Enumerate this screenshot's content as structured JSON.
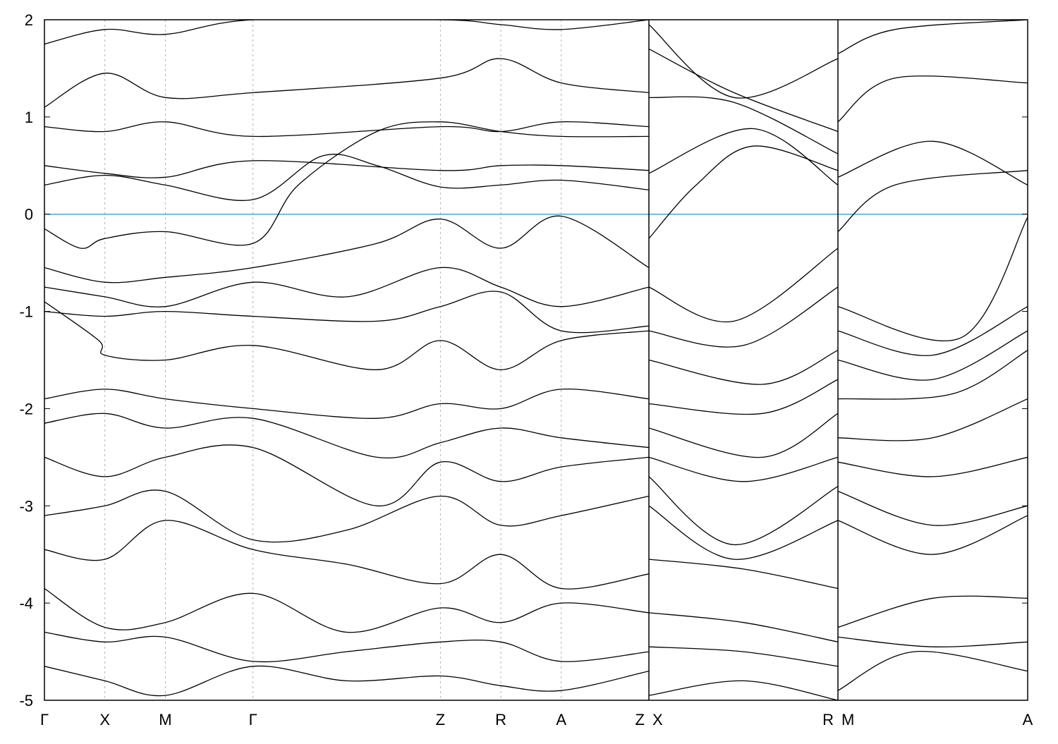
{
  "chart_data": {
    "type": "line",
    "title": "",
    "xlabel": "",
    "ylabel": "",
    "ylim": [
      -5,
      2
    ],
    "yticks": [
      -5,
      -4,
      -3,
      -2,
      -1,
      0,
      1,
      2
    ],
    "fermi_level": 0,
    "fermi_color": "#4aa8c8",
    "line_color": "#000000",
    "grid": "dashed vertical lines at high-symmetry points",
    "panels": [
      {
        "name": "Γ-X-M-Γ-Z-R-A-Z",
        "xlim": [
          0,
          10
        ],
        "kpoints": [
          {
            "label": "Γ",
            "x": 0
          },
          {
            "label": "X",
            "x": 1
          },
          {
            "label": "M",
            "x": 2
          },
          {
            "label": "Γ",
            "x": 3.45
          },
          {
            "label": "Z",
            "x": 6.55
          },
          {
            "label": "R",
            "x": 7.55
          },
          {
            "label": "A",
            "x": 8.55
          },
          {
            "label": "Z",
            "x": 10
          }
        ],
        "bands": [
          {
            "x": [
              0,
              1,
              2,
              3.45,
              6.55,
              7.55,
              8.55,
              10
            ],
            "y": [
              1.75,
              1.9,
              1.85,
              2.0,
              2.0,
              1.95,
              1.9,
              2.0
            ]
          },
          {
            "x": [
              0,
              1,
              2,
              3.45,
              6.55,
              7.55,
              8.55,
              10
            ],
            "y": [
              1.1,
              1.45,
              1.2,
              1.25,
              1.4,
              1.6,
              1.35,
              1.25
            ]
          },
          {
            "x": [
              0,
              1,
              2,
              3.45,
              6.55,
              7.55,
              8.55,
              10
            ],
            "y": [
              0.9,
              0.85,
              0.95,
              0.8,
              0.9,
              0.85,
              0.95,
              0.9
            ]
          },
          {
            "x": [
              0,
              1,
              2,
              3.45,
              6.55,
              7.55,
              8.55,
              10
            ],
            "y": [
              0.5,
              0.42,
              0.38,
              0.55,
              0.45,
              0.5,
              0.5,
              0.45
            ]
          },
          {
            "x": [
              0,
              1,
              2,
              3.45,
              4.6,
              5.5,
              6.55,
              7.55,
              8.55,
              10
            ],
            "y": [
              0.3,
              0.4,
              0.3,
              0.15,
              0.6,
              0.5,
              0.28,
              0.3,
              0.35,
              0.25
            ]
          },
          {
            "x": [
              0,
              0.6,
              1,
              2,
              3.45,
              4.2,
              5.5,
              6.55,
              7.55,
              8.55,
              10
            ],
            "y": [
              -0.15,
              -0.35,
              -0.25,
              -0.18,
              -0.3,
              0.3,
              0.85,
              0.95,
              0.85,
              0.8,
              0.8
            ]
          },
          {
            "x": [
              0,
              1,
              2,
              3.45,
              5.5,
              6.55,
              7.55,
              8.55,
              10
            ],
            "y": [
              -0.55,
              -0.7,
              -0.65,
              -0.55,
              -0.3,
              -0.05,
              -0.35,
              -0.02,
              -0.55
            ]
          },
          {
            "x": [
              0,
              1,
              2,
              3.45,
              5.0,
              6.55,
              7.55,
              8.55,
              10
            ],
            "y": [
              -0.75,
              -0.85,
              -0.95,
              -0.7,
              -0.85,
              -0.55,
              -0.75,
              -0.95,
              -0.75
            ]
          },
          {
            "x": [
              0,
              1,
              2,
              3.45,
              5.5,
              6.55,
              7.55,
              8.55,
              10
            ],
            "y": [
              -1.0,
              -1.05,
              -1.0,
              -1.05,
              -1.1,
              -0.95,
              -0.8,
              -1.2,
              -1.15
            ]
          },
          {
            "x": [
              0,
              0.9,
              1,
              2,
              3.45,
              5.5,
              6.55,
              7.55,
              8.55,
              10
            ],
            "y": [
              -0.9,
              -1.3,
              -1.45,
              -1.5,
              -1.35,
              -1.6,
              -1.3,
              -1.6,
              -1.3,
              -1.2
            ]
          },
          {
            "x": [
              0,
              1,
              2,
              3.45,
              5.5,
              6.55,
              7.55,
              8.55,
              10
            ],
            "y": [
              -1.9,
              -1.8,
              -1.9,
              -2.0,
              -2.1,
              -1.95,
              -2.0,
              -1.8,
              -1.9
            ]
          },
          {
            "x": [
              0,
              1,
              2,
              3.45,
              5.5,
              6.55,
              7.55,
              8.55,
              10
            ],
            "y": [
              -2.15,
              -2.05,
              -2.2,
              -2.1,
              -2.5,
              -2.35,
              -2.2,
              -2.3,
              -2.4
            ]
          },
          {
            "x": [
              0,
              1,
              2,
              3.45,
              5.5,
              6.55,
              7.55,
              8.55,
              10
            ],
            "y": [
              -2.5,
              -2.7,
              -2.5,
              -2.4,
              -3.0,
              -2.55,
              -2.75,
              -2.6,
              -2.5
            ]
          },
          {
            "x": [
              0,
              1,
              2,
              3.45,
              5.0,
              6.55,
              7.55,
              8.55,
              10
            ],
            "y": [
              -3.1,
              -3.0,
              -2.85,
              -3.35,
              -3.25,
              -2.9,
              -3.2,
              -3.1,
              -2.9
            ]
          },
          {
            "x": [
              0,
              1,
              2,
              3.45,
              5.0,
              6.55,
              7.55,
              8.55,
              10
            ],
            "y": [
              -3.45,
              -3.55,
              -3.15,
              -3.45,
              -3.6,
              -3.8,
              -3.5,
              -3.85,
              -3.7
            ]
          },
          {
            "x": [
              0,
              1,
              2,
              3.45,
              5.0,
              6.55,
              7.55,
              8.55,
              10
            ],
            "y": [
              -3.85,
              -4.25,
              -4.2,
              -3.9,
              -4.3,
              -4.05,
              -4.2,
              -4.0,
              -4.1
            ]
          },
          {
            "x": [
              0,
              1,
              2,
              3.45,
              5.0,
              6.55,
              7.55,
              8.55,
              10
            ],
            "y": [
              -4.3,
              -4.4,
              -4.35,
              -4.6,
              -4.5,
              -4.4,
              -4.4,
              -4.6,
              -4.5
            ]
          },
          {
            "x": [
              0,
              1,
              2,
              3.45,
              5.0,
              6.55,
              7.55,
              8.55,
              10
            ],
            "y": [
              -4.65,
              -4.8,
              -4.95,
              -4.65,
              -4.8,
              -4.75,
              -4.85,
              -4.9,
              -4.7
            ]
          }
        ]
      },
      {
        "name": "X-R",
        "xlim": [
          0,
          10
        ],
        "kpoints": [
          {
            "label": "X",
            "x": 0
          },
          {
            "label": "R",
            "x": 10
          }
        ],
        "bands": [
          {
            "x": [
              0,
              4.5,
              10
            ],
            "y": [
              1.95,
              1.2,
              1.6
            ]
          },
          {
            "x": [
              0,
              4.5,
              10
            ],
            "y": [
              1.7,
              1.25,
              0.85
            ]
          },
          {
            "x": [
              0,
              4.5,
              10
            ],
            "y": [
              1.2,
              1.15,
              0.62
            ]
          },
          {
            "x": [
              0,
              5.5,
              10
            ],
            "y": [
              0.42,
              0.88,
              0.3
            ]
          },
          {
            "x": [
              0,
              2.5,
              5.5,
              10
            ],
            "y": [
              -0.25,
              0.3,
              0.7,
              0.45
            ]
          },
          {
            "x": [
              0,
              4.5,
              10
            ],
            "y": [
              -0.75,
              -1.1,
              -0.35
            ]
          },
          {
            "x": [
              0,
              5,
              10
            ],
            "y": [
              -1.2,
              -1.35,
              -0.75
            ]
          },
          {
            "x": [
              0,
              6,
              10
            ],
            "y": [
              -1.5,
              -1.75,
              -1.4
            ]
          },
          {
            "x": [
              0,
              6,
              10
            ],
            "y": [
              -1.95,
              -2.05,
              -1.7
            ]
          },
          {
            "x": [
              0,
              6,
              10
            ],
            "y": [
              -2.2,
              -2.5,
              -2.05
            ]
          },
          {
            "x": [
              0,
              5,
              10
            ],
            "y": [
              -2.5,
              -2.75,
              -2.5
            ]
          },
          {
            "x": [
              0,
              4.5,
              10
            ],
            "y": [
              -2.7,
              -3.4,
              -2.8
            ]
          },
          {
            "x": [
              0,
              4.5,
              10
            ],
            "y": [
              -3.0,
              -3.55,
              -3.15
            ]
          },
          {
            "x": [
              0,
              5,
              10
            ],
            "y": [
              -3.55,
              -3.65,
              -3.85
            ]
          },
          {
            "x": [
              0,
              5,
              10
            ],
            "y": [
              -4.1,
              -4.2,
              -4.4
            ]
          },
          {
            "x": [
              0,
              5,
              10
            ],
            "y": [
              -4.45,
              -4.5,
              -4.65
            ]
          },
          {
            "x": [
              0,
              5,
              10
            ],
            "y": [
              -4.95,
              -4.8,
              -5.0
            ]
          }
        ]
      },
      {
        "name": "M-A",
        "xlim": [
          0,
          10
        ],
        "kpoints": [
          {
            "label": "M",
            "x": 0
          },
          {
            "label": "A",
            "x": 10
          }
        ],
        "bands": [
          {
            "x": [
              0,
              3,
              10
            ],
            "y": [
              1.65,
              1.9,
              2.0
            ]
          },
          {
            "x": [
              0,
              3,
              10
            ],
            "y": [
              0.95,
              1.4,
              1.35
            ]
          },
          {
            "x": [
              0,
              5,
              10
            ],
            "y": [
              0.38,
              0.75,
              0.3
            ]
          },
          {
            "x": [
              0,
              3,
              10
            ],
            "y": [
              -0.18,
              0.3,
              0.45
            ]
          },
          {
            "x": [
              0,
              6.5,
              10
            ],
            "y": [
              -0.95,
              -1.27,
              -0.03
            ]
          },
          {
            "x": [
              0,
              5,
              10
            ],
            "y": [
              -1.2,
              -1.45,
              -0.95
            ]
          },
          {
            "x": [
              0,
              5,
              10
            ],
            "y": [
              -1.5,
              -1.7,
              -1.2
            ]
          },
          {
            "x": [
              0,
              6,
              10
            ],
            "y": [
              -1.9,
              -1.85,
              -1.4
            ]
          },
          {
            "x": [
              0,
              5,
              10
            ],
            "y": [
              -2.3,
              -2.3,
              -1.9
            ]
          },
          {
            "x": [
              0,
              5,
              10
            ],
            "y": [
              -2.55,
              -2.7,
              -2.5
            ]
          },
          {
            "x": [
              0,
              5,
              10
            ],
            "y": [
              -2.85,
              -3.2,
              -3.0
            ]
          },
          {
            "x": [
              0,
              5,
              10
            ],
            "y": [
              -3.15,
              -3.5,
              -3.1
            ]
          },
          {
            "x": [
              0,
              5,
              10
            ],
            "y": [
              -4.25,
              -3.95,
              -3.95
            ]
          },
          {
            "x": [
              0,
              5,
              10
            ],
            "y": [
              -4.35,
              -4.45,
              -4.4
            ]
          },
          {
            "x": [
              0,
              4,
              10
            ],
            "y": [
              -4.9,
              -4.5,
              -4.7
            ]
          }
        ]
      }
    ]
  }
}
